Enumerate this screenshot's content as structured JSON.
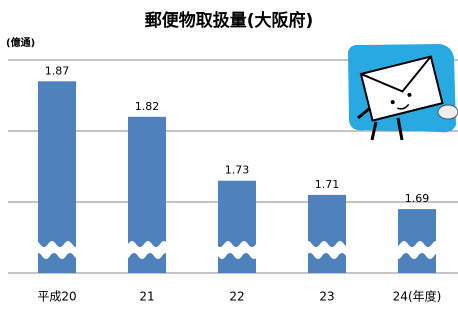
{
  "chart_data": {
    "type": "bar",
    "title": "郵便物取扱量(大阪府)",
    "y_label": "(億通)",
    "categories": [
      "平成20",
      "21",
      "22",
      "23",
      "24(年度)"
    ],
    "values": [
      1.87,
      1.82,
      1.73,
      1.71,
      1.69
    ],
    "color": "#4f81bd",
    "ylim": [
      1.6,
      1.9
    ],
    "yticks": [
      1.7,
      1.8,
      1.9
    ],
    "grid": true
  }
}
